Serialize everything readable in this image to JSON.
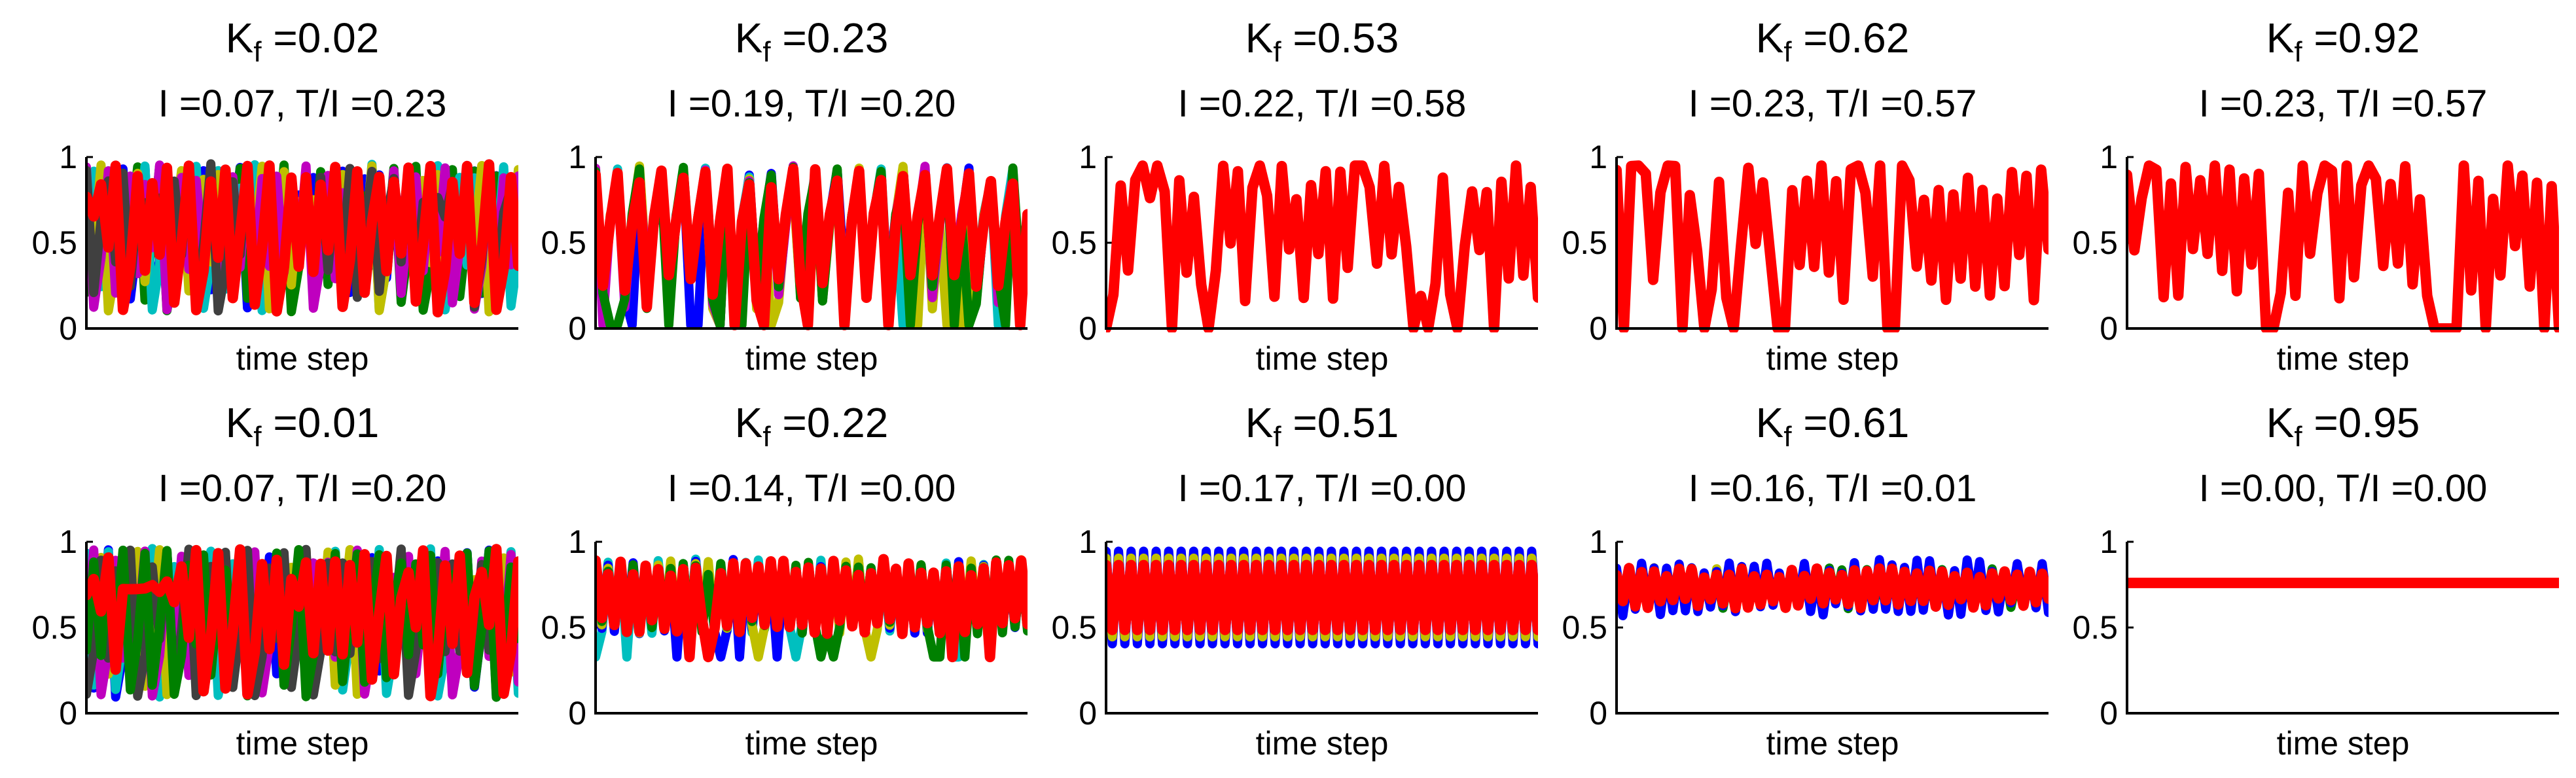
{
  "figure": {
    "colors": [
      "#0000FF",
      "#008000",
      "#FF0000",
      "#00BFBF",
      "#BFBF00",
      "#BF00BF",
      "#404040"
    ]
  },
  "chart_data": [
    {
      "type": "line",
      "title_k_base": "K",
      "title_k_sub": "f",
      "title_k_val": " =0.02",
      "title_it": "I =0.07, T/I =0.23",
      "xlabel": "time step",
      "yticks": [
        "0",
        "0.5",
        "1"
      ],
      "ylim": [
        0,
        1
      ],
      "pattern": "chaotic",
      "series": [
        "blue",
        "green",
        "cyan",
        "yellow",
        "magenta",
        "gray",
        "red"
      ],
      "n": 60,
      "seed": 11,
      "mean": 0.5,
      "amp": 0.5,
      "visible_series": "all"
    },
    {
      "type": "line",
      "title_k_base": "K",
      "title_k_sub": "f",
      "title_k_val": " =0.23",
      "title_it": "I =0.19, T/I =0.20",
      "xlabel": "time step",
      "yticks": [
        "0",
        "0.5",
        "1"
      ],
      "ylim": [
        0,
        1
      ],
      "pattern": "semi",
      "series": [
        "blue",
        "cyan",
        "yellow",
        "magenta",
        "green",
        "red"
      ],
      "n": 60,
      "seed": 23,
      "mean": 0.6,
      "amp": 0.35,
      "visible_series": "all"
    },
    {
      "type": "line",
      "title_k_base": "K",
      "title_k_sub": "f",
      "title_k_val": " =0.53",
      "title_it": "I =0.22, T/I =0.58",
      "xlabel": "time step",
      "yticks": [
        "0",
        "0.5",
        "1"
      ],
      "ylim": [
        0,
        1
      ],
      "pattern": "sync",
      "series": [
        "red"
      ],
      "n": 60,
      "seed": 53,
      "visible_series": "red"
    },
    {
      "type": "line",
      "title_k_base": "K",
      "title_k_sub": "f",
      "title_k_val": " =0.62",
      "title_it": "I =0.23, T/I =0.57",
      "xlabel": "time step",
      "yticks": [
        "0",
        "0.5",
        "1"
      ],
      "ylim": [
        0,
        1
      ],
      "pattern": "sync",
      "series": [
        "red"
      ],
      "n": 60,
      "seed": 62,
      "visible_series": "red"
    },
    {
      "type": "line",
      "title_k_base": "K",
      "title_k_sub": "f",
      "title_k_val": " =0.92",
      "title_it": "I =0.23, T/I =0.57",
      "xlabel": "time step",
      "yticks": [
        "0",
        "0.5",
        "1"
      ],
      "ylim": [
        0,
        1
      ],
      "pattern": "sync",
      "series": [
        "red"
      ],
      "n": 60,
      "seed": 92,
      "visible_series": "red"
    },
    {
      "type": "line",
      "title_k_base": "K",
      "title_k_sub": "f",
      "title_k_val": " =0.01",
      "title_it": "I =0.07, T/I =0.20",
      "xlabel": "time step",
      "yticks": [
        "0",
        "0.5",
        "1"
      ],
      "ylim": [
        0,
        1
      ],
      "pattern": "chaotic",
      "series": [
        "blue",
        "cyan",
        "yellow",
        "magenta",
        "gray",
        "green",
        "red"
      ],
      "n": 60,
      "seed": 1,
      "mean": 0.5,
      "amp": 0.5,
      "visible_series": "all"
    },
    {
      "type": "line",
      "title_k_base": "K",
      "title_k_sub": "f",
      "title_k_val": " =0.22",
      "title_it": "I =0.14, T/I =0.00",
      "xlabel": "time step",
      "yticks": [
        "0",
        "0.5",
        "1"
      ],
      "ylim": [
        0,
        1
      ],
      "pattern": "osc",
      "series": [
        "cyan",
        "blue",
        "yellow",
        "green",
        "red"
      ],
      "n": 70,
      "seed": 22,
      "mean": 0.68,
      "amp": 0.22,
      "visible_series": "all"
    },
    {
      "type": "line",
      "title_k_base": "K",
      "title_k_sub": "f",
      "title_k_val": " =0.51",
      "title_it": "I =0.17, T/I =0.00",
      "xlabel": "time step",
      "yticks": [
        "0",
        "0.5",
        "1"
      ],
      "ylim": [
        0,
        1
      ],
      "pattern": "cycle",
      "series": [
        "blue",
        "yellow",
        "red"
      ],
      "n": 70,
      "seed": 51,
      "mean": 0.675,
      "amp": 0.27,
      "visible_series": "all"
    },
    {
      "type": "line",
      "title_k_base": "K",
      "title_k_sub": "f",
      "title_k_val": " =0.61",
      "title_it": "I =0.16, T/I =0.01",
      "xlabel": "time step",
      "yticks": [
        "0",
        "0.5",
        "1"
      ],
      "ylim": [
        0,
        1
      ],
      "pattern": "band",
      "series": [
        "yellow",
        "green",
        "blue",
        "red"
      ],
      "n": 70,
      "seed": 61,
      "mean": 0.73,
      "amp": 0.12,
      "visible_series": "all"
    },
    {
      "type": "line",
      "title_k_base": "K",
      "title_k_sub": "f",
      "title_k_val": " =0.95",
      "title_it": "I =0.00, T/I =0.00",
      "xlabel": "time step",
      "yticks": [
        "0",
        "0.5",
        "1"
      ],
      "ylim": [
        0,
        1
      ],
      "pattern": "flat",
      "series": [
        "red"
      ],
      "n": 60,
      "seed": 95,
      "mean": 0.76,
      "visible_series": "red"
    }
  ]
}
